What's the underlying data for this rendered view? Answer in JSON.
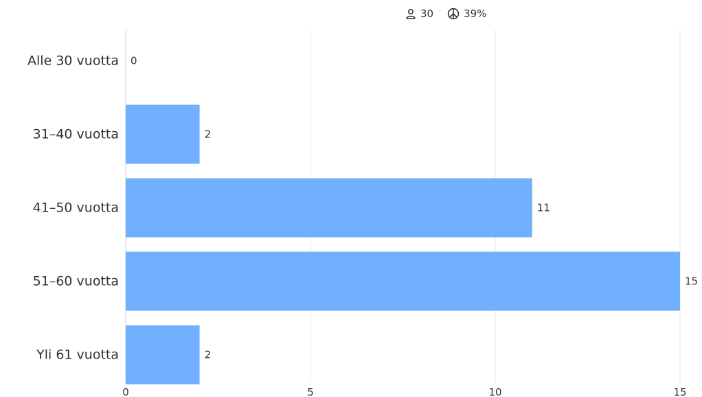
{
  "header": {
    "respondents": "30",
    "response_rate": "39%",
    "respondents_icon": "person-icon",
    "response_rate_icon": "response-rate-icon"
  },
  "chart_data": {
    "type": "bar",
    "orientation": "horizontal",
    "categories": [
      "Alle 30 vuotta",
      "31–40 vuotta",
      "41–50 vuotta",
      "51–60 vuotta",
      "Yli 61 vuotta"
    ],
    "values": [
      0,
      2,
      11,
      15,
      2
    ],
    "value_labels": [
      "0",
      "2",
      "11",
      "15",
      "2"
    ],
    "xlim": [
      0,
      15
    ],
    "xticks": [
      0,
      5,
      10,
      15
    ],
    "xtick_labels": [
      "0",
      "5",
      "10",
      "15"
    ],
    "grid": true,
    "legend": "none",
    "bar_color": "#70b0ff",
    "grid_color": "#e6e6e6",
    "axis_color": "#cccccc",
    "text_color": "#333333"
  }
}
